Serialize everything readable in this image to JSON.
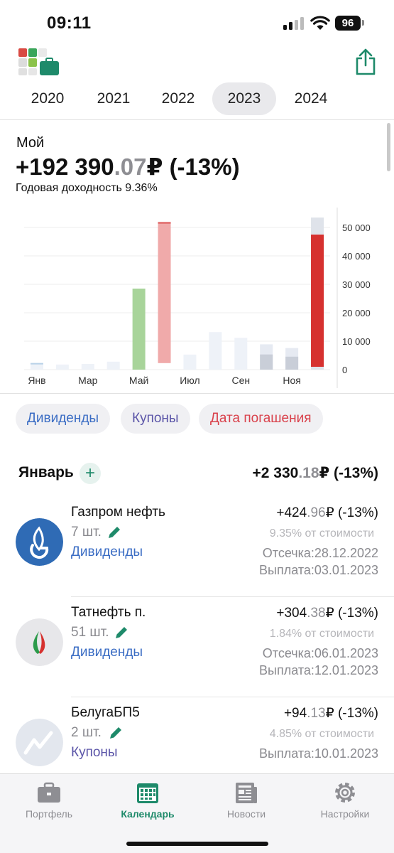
{
  "status": {
    "time": "09:11",
    "battery": "96"
  },
  "colors": {
    "accent": "#1e8a6a",
    "dividend": "#3b6dc4",
    "coupon": "#5b55a8",
    "maturity": "#d9414b",
    "positive_bar": "#a8d49a",
    "negative_bar_light": "#f0aaaa",
    "negative_bar": "#d6312f",
    "muted": "#8e8e93"
  },
  "icons": {
    "logo": "app-logo-icon",
    "share": "share-icon",
    "add": "plus-icon",
    "edit": "pencil-icon",
    "portfolio": "briefcase-icon",
    "calendar": "calendar-icon",
    "news": "newspaper-icon",
    "settings": "gear-icon"
  },
  "years": [
    "2020",
    "2021",
    "2022",
    "2023",
    "2024"
  ],
  "selected_year": "2023",
  "summary": {
    "portfolio_name": "Мой",
    "total_int": "+192 390",
    "total_dec": ".07",
    "total_rest": "₽ (-13%)",
    "annual_yield": "Годовая доходность 9.36%"
  },
  "chart_data": {
    "type": "bar",
    "categories": [
      "Янв",
      "Фев",
      "Мар",
      "Апр",
      "Май",
      "Июн",
      "Июл",
      "Авг",
      "Сен",
      "Окт",
      "Ноя",
      "Дек"
    ],
    "x_tick_labels": [
      "Янв",
      "Мар",
      "Май",
      "Июл",
      "Сен",
      "Ноя"
    ],
    "y_tick_labels": [
      "0",
      "10 000",
      "20 000",
      "30 000",
      "40 000",
      "50 000"
    ],
    "ylim": [
      0,
      55000
    ],
    "grid": true,
    "y_axis_position": "right",
    "bars": [
      {
        "month": "Янв",
        "total": 2330,
        "base": 0,
        "style": "faint"
      },
      {
        "month": "Фев",
        "total": 1800,
        "base": 0,
        "style": "faint"
      },
      {
        "month": "Мар",
        "total": 2000,
        "base": 0,
        "style": "faint"
      },
      {
        "month": "Апр",
        "total": 2800,
        "base": 0,
        "style": "faint"
      },
      {
        "month": "Май",
        "total": 28500,
        "base": 0,
        "style": "positive"
      },
      {
        "month": "Июн",
        "total": 52000,
        "base": 2300,
        "style": "negative-light"
      },
      {
        "month": "Июл",
        "total": 5300,
        "base": 0,
        "style": "faint"
      },
      {
        "month": "Авг",
        "total": 13200,
        "base": 0,
        "style": "faint"
      },
      {
        "month": "Сен",
        "total": 11200,
        "base": 1200,
        "style": "faint"
      },
      {
        "month": "Окт",
        "total": 8900,
        "base": 1500,
        "style": "faint-dark"
      },
      {
        "month": "Ноя",
        "total": 7600,
        "base": 700,
        "style": "faint-dark"
      },
      {
        "month": "Дек",
        "total": 53500,
        "base": 1000,
        "overlay": 47500,
        "style": "negative"
      }
    ]
  },
  "filters": [
    {
      "label": "Дивиденды",
      "color": "#3b6dc4"
    },
    {
      "label": "Купоны",
      "color": "#5b55a8"
    },
    {
      "label": "Дата погашения",
      "color": "#d9414b"
    }
  ],
  "month": {
    "title": "Январь",
    "total_int": "+2 330",
    "total_dec": ".18",
    "total_rest": "₽ (-13%)"
  },
  "payments": [
    {
      "name": "Газпром нефть",
      "qty": "7 шт.",
      "type": "Дивиденды",
      "amount_int": "+424",
      "amount_dec": ".96",
      "amount_rest": "₽ (-13%)",
      "share": "9.35% от стоимости",
      "line1": "Отсечка:28.12.2022",
      "line2": "Выплата:03.01.2023",
      "logo": "gazprom-neft-logo"
    },
    {
      "name": "Татнефть п.",
      "qty": "51 шт.",
      "type": "Дивиденды",
      "amount_int": "+304",
      "amount_dec": ".38",
      "amount_rest": "₽ (-13%)",
      "share": "1.84% от стоимости",
      "line1": "Отсечка:06.01.2023",
      "line2": "Выплата:12.01.2023",
      "logo": "tatneft-logo"
    },
    {
      "name": "БелугаБП5",
      "qty": "2 шт.",
      "type": "Купоны",
      "amount_int": "+94",
      "amount_dec": ".13",
      "amount_rest": "₽ (-13%)",
      "share": "4.85% от стоимости",
      "line1": "Выплата:10.01.2023",
      "logo": "bond-chart-logo"
    }
  ],
  "tabs": [
    {
      "label": "Портфель"
    },
    {
      "label": "Календарь"
    },
    {
      "label": "Новости"
    },
    {
      "label": "Настройки"
    }
  ],
  "active_tab": "Календарь"
}
